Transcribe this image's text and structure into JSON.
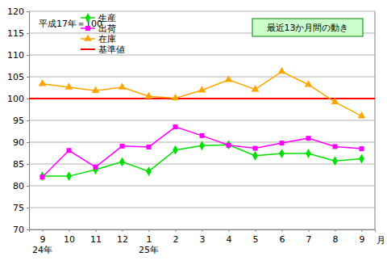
{
  "chart_data": {
    "type": "line",
    "categories": [
      "9",
      "10",
      "11",
      "12",
      "1",
      "2",
      "3",
      "4",
      "5",
      "6",
      "7",
      "8",
      "9"
    ],
    "x_group_labels": [
      "24年",
      null,
      null,
      null,
      "25年",
      null,
      null,
      null,
      null,
      null,
      null,
      null,
      null
    ],
    "x_label": "月",
    "annotations": [
      "平成17年＝100",
      "最近13か月間の動き"
    ],
    "series": [
      {
        "name": "生産",
        "color": "#00e000",
        "marker": "diamond",
        "values": [
          82.2,
          82.2,
          83.7,
          85.5,
          83.3,
          88.2,
          89.2,
          89.4,
          86.9,
          87.4,
          87.4,
          85.7,
          86.2
        ]
      },
      {
        "name": "出荷",
        "color": "#ff00ff",
        "marker": "square",
        "values": [
          82.0,
          88.1,
          84.3,
          89.1,
          88.9,
          93.5,
          91.5,
          89.3,
          88.6,
          89.8,
          90.9,
          89.0,
          88.5
        ]
      },
      {
        "name": "在庫",
        "color": "#ffa500",
        "marker": "triangle",
        "values": [
          103.4,
          102.6,
          101.8,
          102.6,
          100.5,
          100.1,
          101.9,
          104.3,
          102.1,
          106.2,
          103.2,
          99.2,
          96.0
        ]
      }
    ],
    "reference_lines": [
      {
        "name": "基準値",
        "value": 100,
        "color": "#ff0000"
      }
    ],
    "ylim": [
      70,
      120
    ],
    "yticks": [
      70,
      75,
      80,
      85,
      90,
      95,
      100,
      105,
      110,
      115,
      120
    ],
    "grid": true,
    "legend": "upper left"
  }
}
